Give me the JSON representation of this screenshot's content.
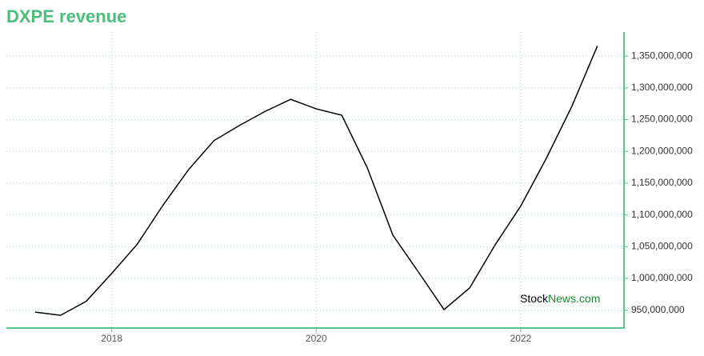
{
  "chart_data": {
    "type": "line",
    "title": "DXPE revenue",
    "watermark": {
      "part1": "Stock",
      "part2": "News.com"
    },
    "x": [
      2017.25,
      2017.5,
      2017.75,
      2018,
      2018.25,
      2018.5,
      2018.75,
      2019,
      2019.25,
      2019.5,
      2019.75,
      2020,
      2020.25,
      2020.5,
      2020.75,
      2021,
      2021.25,
      2021.5,
      2021.75,
      2022,
      2022.25,
      2022.5,
      2022.75
    ],
    "series": [
      {
        "color": "#000000",
        "values": [
          947000000,
          942000000,
          964000000,
          1008000000,
          1054000000,
          1115000000,
          1171000000,
          1217000000,
          1241000000,
          1263000000,
          1282000000,
          1267000000,
          1257000000,
          1174000000,
          1068000000,
          1010000000,
          951000000,
          985000000,
          1053000000,
          1114000000,
          1189000000,
          1271000000,
          1366000000
        ]
      }
    ],
    "xlim": [
      2016.97,
      2023.01
    ],
    "xticks": [
      2018,
      2020,
      2022
    ],
    "ylim": [
      922000000,
      1388000000
    ],
    "yticks": [
      {
        "value": 950000000,
        "label": "950,000,000"
      },
      {
        "value": 1000000000,
        "label": "1,000,000,000"
      },
      {
        "value": 1050000000,
        "label": "1,050,000,000"
      },
      {
        "value": 1100000000,
        "label": "1,100,000,000"
      },
      {
        "value": 1150000000,
        "label": "1,150,000,000"
      },
      {
        "value": 1200000000,
        "label": "1,200,000,000"
      },
      {
        "value": 1250000000,
        "label": "1,250,000,000"
      },
      {
        "value": 1300000000,
        "label": "1,300,000,000"
      },
      {
        "value": 1350000000,
        "label": "1,350,000,000"
      }
    ],
    "grid": true,
    "axis_color": "#5cc28a",
    "title_color": "#4dbd7c"
  }
}
